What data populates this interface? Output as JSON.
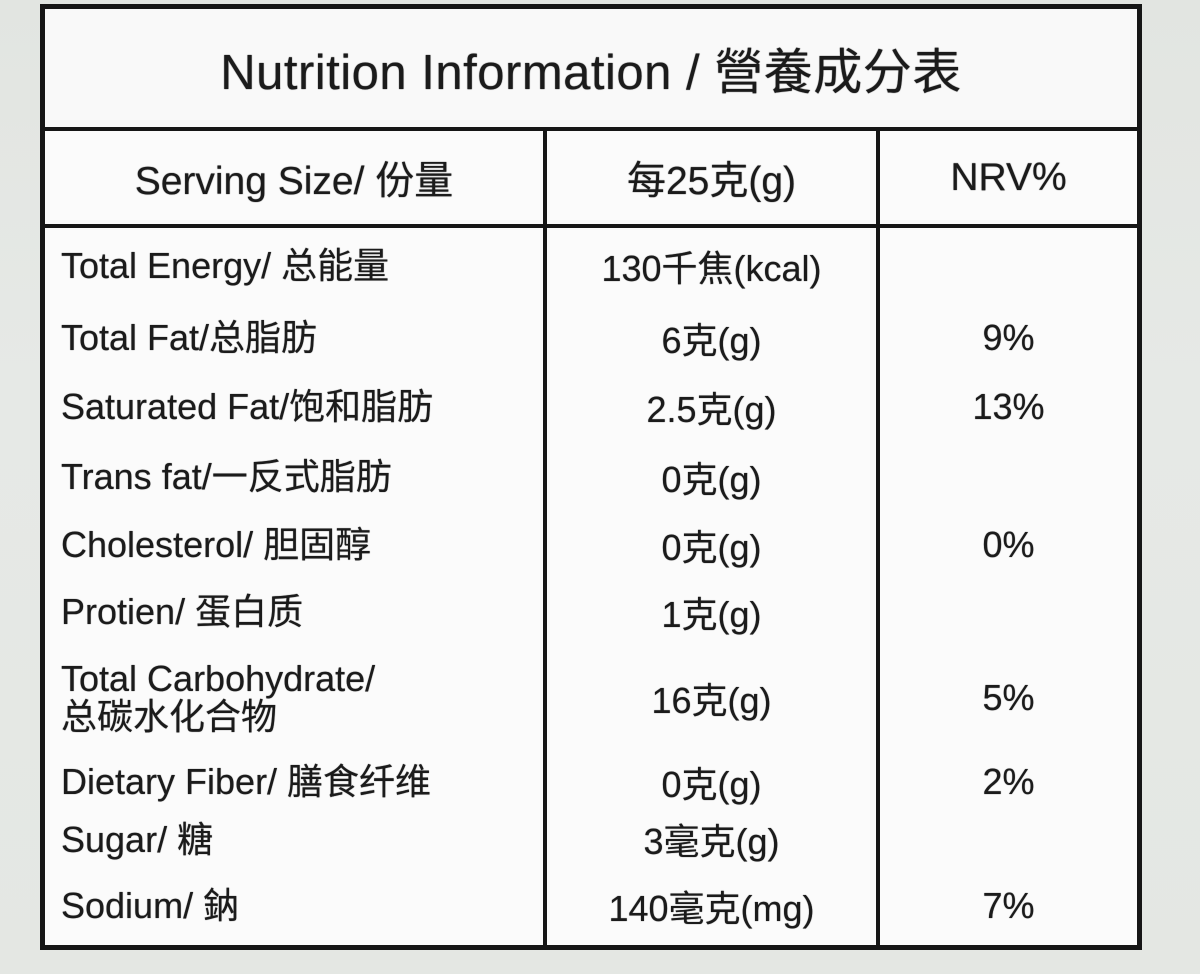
{
  "table": {
    "title": "Nutrition Information / 營養成分表",
    "header": {
      "serving_size": "Serving Size/ 份量",
      "amount": "每25克(g)",
      "nrv": "NRV%"
    },
    "rows": [
      {
        "label": "Total Energy/ 总能量",
        "label2": "",
        "value": "130千焦(kcal)",
        "nrv": ""
      },
      {
        "label": "Total Fat/总脂肪",
        "label2": "",
        "value": "6克(g)",
        "nrv": "9%"
      },
      {
        "label": "Saturated Fat/饱和脂肪",
        "label2": "",
        "value": "2.5克(g)",
        "nrv": "13%"
      },
      {
        "label": "Trans fat/一反式脂肪",
        "label2": "",
        "value": "0克(g)",
        "nrv": ""
      },
      {
        "label": "Cholesterol/ 胆固醇",
        "label2": "",
        "value": "0克(g)",
        "nrv": "0%"
      },
      {
        "label": "Protien/ 蛋白质",
        "label2": "",
        "value": "1克(g)",
        "nrv": ""
      },
      {
        "label": "Total Carbohydrate/",
        "label2": "总碳水化合物",
        "value": "16克(g)",
        "nrv": "5%"
      },
      {
        "label": "Dietary Fiber/ 膳食纤维",
        "label2": "",
        "value": "0克(g)",
        "nrv": "2%"
      },
      {
        "label": "Sugar/ 糖",
        "label2": "",
        "value": "3毫克(g)",
        "nrv": ""
      },
      {
        "label": "Sodium/ 鈉",
        "label2": "",
        "value": "140毫克(mg)",
        "nrv": "7%"
      }
    ]
  }
}
